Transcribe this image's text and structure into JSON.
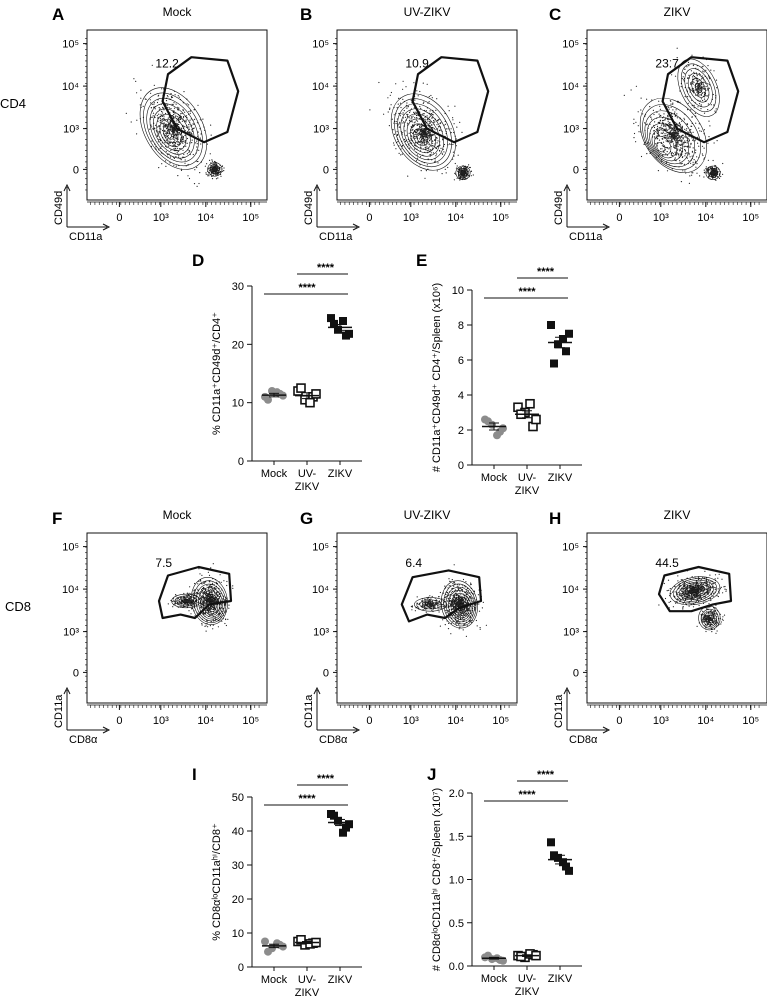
{
  "row_labels": {
    "top": "CD4",
    "bottom": "CD8"
  },
  "chart_data": [
    {
      "panel": "A",
      "type": "contour",
      "title": "Mock",
      "xlabel": "CD11a",
      "ylabel": "CD49d",
      "x_ticks": [
        "0",
        "10³",
        "10⁴",
        "10⁵"
      ],
      "y_ticks": [
        "0",
        "10³",
        "10⁴",
        "10⁵"
      ],
      "gate_value": "12.2"
    },
    {
      "panel": "B",
      "type": "contour",
      "title": "UV-ZIKV",
      "xlabel": "CD11a",
      "ylabel": "CD49d",
      "x_ticks": [
        "0",
        "10³",
        "10⁴",
        "10⁵"
      ],
      "y_ticks": [
        "0",
        "10³",
        "10⁴",
        "10⁵"
      ],
      "gate_value": "10.9"
    },
    {
      "panel": "C",
      "type": "contour",
      "title": "ZIKV",
      "xlabel": "CD11a",
      "ylabel": "CD49d",
      "x_ticks": [
        "0",
        "10³",
        "10⁴",
        "10⁵"
      ],
      "y_ticks": [
        "0",
        "10³",
        "10⁴",
        "10⁵"
      ],
      "gate_value": "23.7"
    },
    {
      "panel": "D",
      "type": "scatter",
      "ylabel": "% CD11a⁺CD49d⁺/CD4⁺",
      "ylim": [
        0,
        30
      ],
      "y_ticks": [
        "0",
        "10",
        "20",
        "30"
      ],
      "categories": [
        "Mock",
        "UV-ZIKV",
        "ZIKV"
      ],
      "category_lines": [
        [
          "Mock"
        ],
        [
          "UV-",
          "ZIKV"
        ],
        [
          "ZIKV"
        ]
      ],
      "series": [
        {
          "category": "Mock",
          "marker": "circle",
          "color": "#8c8c8c",
          "values": [
            11.0,
            12.0,
            11.5,
            10.5,
            11.8,
            11.2
          ],
          "mean": 11.3,
          "sem": 0.3
        },
        {
          "category": "UV-ZIKV",
          "marker": "open-square",
          "color": "#111111",
          "values": [
            12.0,
            10.5,
            11.0,
            12.5,
            10.0,
            11.5
          ],
          "mean": 11.2,
          "sem": 0.5
        },
        {
          "category": "ZIKV",
          "marker": "filled-square",
          "color": "#111111",
          "values": [
            24.5,
            22.5,
            21.5,
            23.5,
            24.0,
            21.8
          ],
          "mean": 22.9,
          "sem": 0.5
        }
      ],
      "significance": [
        {
          "from": "Mock",
          "to": "ZIKV",
          "label": "****"
        },
        {
          "from": "UV-ZIKV",
          "to": "ZIKV",
          "label": "****"
        }
      ]
    },
    {
      "panel": "E",
      "type": "scatter",
      "ylabel": "# CD11a⁺CD49d⁺ CD4⁺/Spleen (x10⁶)",
      "ylim": [
        0,
        10
      ],
      "y_ticks": [
        "0",
        "2",
        "4",
        "6",
        "8",
        "10"
      ],
      "categories": [
        "Mock",
        "UV-ZIKV",
        "ZIKV"
      ],
      "category_lines": [
        [
          "Mock"
        ],
        [
          "UV-",
          "ZIKV"
        ],
        [
          "ZIKV"
        ]
      ],
      "series": [
        {
          "category": "Mock",
          "marker": "circle",
          "color": "#8c8c8c",
          "values": [
            2.6,
            2.3,
            1.9,
            2.5,
            1.7,
            2.1
          ],
          "mean": 2.2,
          "sem": 0.2
        },
        {
          "category": "UV-ZIKV",
          "marker": "open-square",
          "color": "#111111",
          "values": [
            3.3,
            3.0,
            2.2,
            2.9,
            3.5,
            2.6
          ],
          "mean": 2.9,
          "sem": 0.2
        },
        {
          "category": "ZIKV",
          "marker": "filled-square",
          "color": "#111111",
          "values": [
            8.0,
            6.9,
            6.5,
            5.8,
            7.2,
            7.5
          ],
          "mean": 7.0,
          "sem": 0.3
        }
      ],
      "significance": [
        {
          "from": "Mock",
          "to": "ZIKV",
          "label": "****"
        },
        {
          "from": "UV-ZIKV",
          "to": "ZIKV",
          "label": "****"
        }
      ]
    },
    {
      "panel": "F",
      "type": "contour",
      "title": "Mock",
      "xlabel": "CD8α",
      "ylabel": "CD11a",
      "x_ticks": [
        "0",
        "10³",
        "10⁴",
        "10⁵"
      ],
      "y_ticks": [
        "0",
        "10³",
        "10⁴",
        "10⁵"
      ],
      "gate_value": "7.5"
    },
    {
      "panel": "G",
      "type": "contour",
      "title": "UV-ZIKV",
      "xlabel": "CD8α",
      "ylabel": "CD11a",
      "x_ticks": [
        "0",
        "10³",
        "10⁴",
        "10⁵"
      ],
      "y_ticks": [
        "0",
        "10³",
        "10⁴",
        "10⁵"
      ],
      "gate_value": "6.4"
    },
    {
      "panel": "H",
      "type": "contour",
      "title": "ZIKV",
      "xlabel": "CD8α",
      "ylabel": "CD11a",
      "x_ticks": [
        "0",
        "10³",
        "10⁴",
        "10⁵"
      ],
      "y_ticks": [
        "0",
        "10³",
        "10⁴",
        "10⁵"
      ],
      "gate_value": "44.5"
    },
    {
      "panel": "I",
      "type": "scatter",
      "ylabel": "% CD8αˡᵒCD11aʰⁱ/CD8⁺",
      "ylim": [
        0,
        50
      ],
      "y_ticks": [
        "0",
        "10",
        "20",
        "30",
        "40",
        "50"
      ],
      "categories": [
        "Mock",
        "UV-ZIKV",
        "ZIKV"
      ],
      "category_lines": [
        [
          "Mock"
        ],
        [
          "UV-",
          "ZIKV"
        ],
        [
          "ZIKV"
        ]
      ],
      "series": [
        {
          "category": "Mock",
          "marker": "circle",
          "color": "#8c8c8c",
          "values": [
            7.5,
            5.5,
            6.5,
            4.5,
            7.0,
            6.0
          ],
          "mean": 6.2,
          "sem": 0.5
        },
        {
          "category": "UV-ZIKV",
          "marker": "open-square",
          "color": "#111111",
          "values": [
            7.5,
            6.5,
            7.0,
            8.0,
            6.8,
            7.2
          ],
          "mean": 7.2,
          "sem": 0.3
        },
        {
          "category": "ZIKV",
          "marker": "filled-square",
          "color": "#111111",
          "values": [
            45.0,
            43.0,
            41.0,
            44.5,
            39.5,
            42.0
          ],
          "mean": 42.5,
          "sem": 0.9
        }
      ],
      "significance": [
        {
          "from": "Mock",
          "to": "ZIKV",
          "label": "****"
        },
        {
          "from": "UV-ZIKV",
          "to": "ZIKV",
          "label": "****"
        }
      ]
    },
    {
      "panel": "J",
      "type": "scatter",
      "ylabel": "# CD8αˡᵒCD11aʰⁱ CD8⁺/Spleen (x10⁷)",
      "ylim": [
        0,
        2.0
      ],
      "y_ticks": [
        "0.0",
        "0.5",
        "1.0",
        "1.5",
        "2.0"
      ],
      "categories": [
        "Mock",
        "UV-ZIKV",
        "ZIKV"
      ],
      "category_lines": [
        [
          "Mock"
        ],
        [
          "UV-",
          "ZIKV"
        ],
        [
          "ZIKV"
        ]
      ],
      "series": [
        {
          "category": "Mock",
          "marker": "circle",
          "color": "#8c8c8c",
          "values": [
            0.1,
            0.08,
            0.07,
            0.12,
            0.09,
            0.06
          ],
          "mean": 0.09,
          "sem": 0.01
        },
        {
          "category": "UV-ZIKV",
          "marker": "open-square",
          "color": "#111111",
          "values": [
            0.12,
            0.1,
            0.13,
            0.11,
            0.14,
            0.12
          ],
          "mean": 0.12,
          "sem": 0.01
        },
        {
          "category": "ZIKV",
          "marker": "filled-square",
          "color": "#111111",
          "values": [
            1.43,
            1.25,
            1.15,
            1.28,
            1.2,
            1.1
          ],
          "mean": 1.23,
          "sem": 0.05
        }
      ],
      "significance": [
        {
          "from": "Mock",
          "to": "ZIKV",
          "label": "****"
        },
        {
          "from": "UV-ZIKV",
          "to": "ZIKV",
          "label": "****"
        }
      ]
    }
  ]
}
